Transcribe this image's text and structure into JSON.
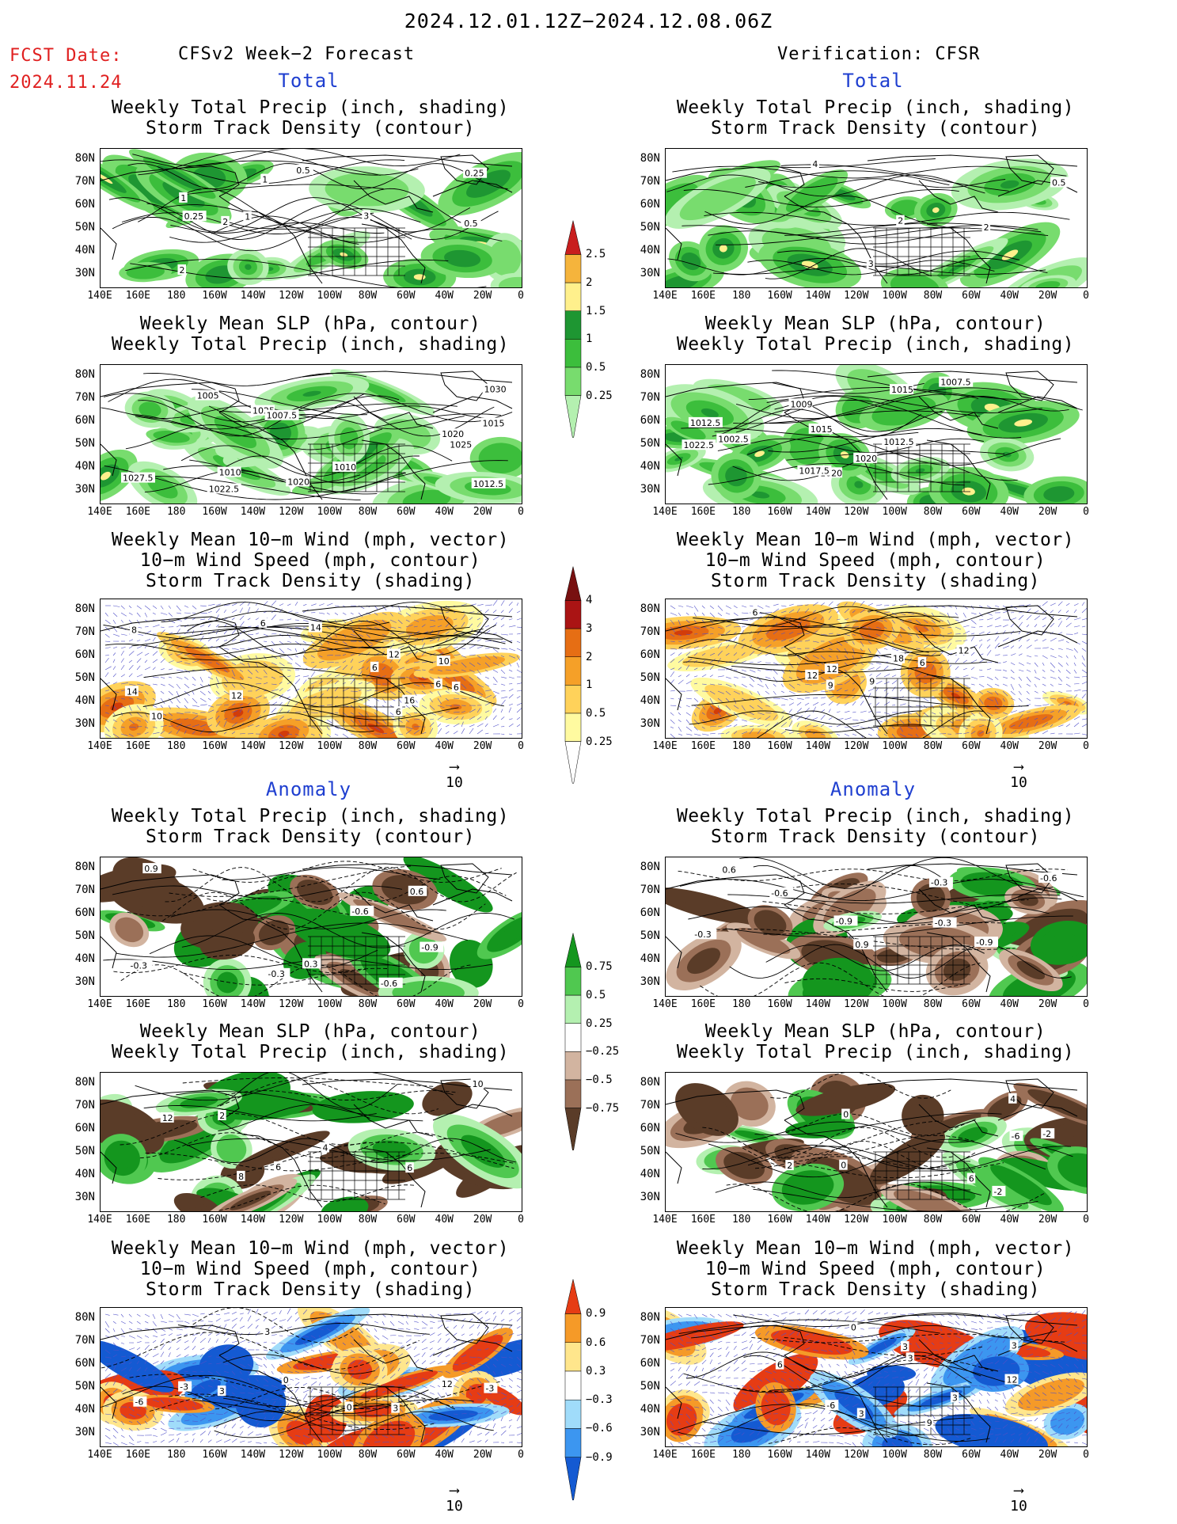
{
  "header": {
    "date_range": "2024.12.01.12Z−2024.12.08.06Z",
    "fcst_date_label": "FCST Date:",
    "fcst_date_value": "2024.11.24",
    "left_title": "CFSv2 Week−2 Forecast",
    "right_title": "Verification: CFSR"
  },
  "sections": {
    "total": "Total",
    "anomaly": "Anomaly"
  },
  "panel_titles": {
    "precip_storm": [
      "Weekly Total Precip (inch, shading)",
      "Storm Track Density (contour)"
    ],
    "slp_precip": [
      "Weekly Mean SLP (hPa, contour)",
      "Weekly Total Precip (inch, shading)"
    ],
    "wind_storm": [
      "Weekly Mean 10−m Wind (mph, vector)",
      "10−m Wind Speed (mph, contour)",
      "Storm Track Density (shading)"
    ]
  },
  "axes": {
    "y_ticks": [
      "80N",
      "70N",
      "60N",
      "50N",
      "40N",
      "30N"
    ],
    "x_ticks": [
      "140E",
      "160E",
      "180",
      "160W",
      "140W",
      "120W",
      "100W",
      "80W",
      "60W",
      "40W",
      "20W",
      "0"
    ]
  },
  "vector_ref": "10",
  "colorbars": {
    "total_precip": [
      "0.25",
      "0.5",
      "1",
      "1.5",
      "2",
      "2.5"
    ],
    "total_storm": [
      "0.25",
      "0.5",
      "1",
      "2",
      "3",
      "4"
    ],
    "anom_precip": [
      "−0.75",
      "−0.5",
      "−0.25",
      "0.25",
      "0.5",
      "0.75"
    ],
    "anom_storm": [
      "−0.9",
      "−0.6",
      "−0.3",
      "0.3",
      "0.6",
      "0.9"
    ]
  },
  "contour_labels": {
    "fc_total_precip": [
      "1",
      "2",
      "3",
      "1",
      "0.5",
      "0.25",
      "0.25",
      "0.5",
      "2",
      "1"
    ],
    "ob_total_precip": [
      "4",
      "2",
      "0.5",
      "3",
      "2"
    ],
    "fc_total_slp": [
      "1025",
      "1020",
      "1030",
      "1027.5",
      "1025",
      "1015",
      "1012.5",
      "1010",
      "1007.5",
      "1005",
      "1010",
      "1022.5",
      "1020"
    ],
    "ob_total_slp": [
      "1020",
      "1002.5",
      "1017.5",
      "1015",
      "1012.5",
      "1007.5",
      "1015",
      "1020",
      "1022.5",
      "1009",
      "1012.5"
    ],
    "fc_total_wind": [
      "6",
      "6",
      "12",
      "10",
      "6",
      "14",
      "12",
      "6",
      "14",
      "8",
      "6",
      "16",
      "10"
    ],
    "ob_total_wind": [
      "9",
      "12",
      "6",
      "6",
      "9",
      "12",
      "12",
      "18"
    ],
    "fc_anom_precip": [
      "-0.3",
      "-0.3",
      "-0.6",
      "-0.6",
      "-0.9",
      "0.9",
      "0.3",
      "0.6"
    ],
    "ob_anom_precip": [
      "-0.9",
      "-0.3",
      "-0.6",
      "-0.3",
      "0.9",
      "-0.9",
      "0.6",
      "-0.3",
      "-0.6"
    ],
    "fc_anom_slp": [
      "6",
      "8",
      "10",
      "4",
      "6",
      "12",
      "2"
    ],
    "ob_anom_slp": [
      "0",
      "-2",
      "2",
      "4",
      "0",
      "-2",
      "-6",
      "6"
    ],
    "fc_anom_wind": [
      "0",
      "0",
      "3",
      "3",
      "3",
      "-3",
      "-6",
      "-3",
      "12"
    ],
    "ob_anom_wind": [
      "0",
      "6",
      "3",
      "3",
      "-6",
      "3",
      "9",
      "12",
      "3",
      "3"
    ]
  },
  "colors": {
    "precip_levels": [
      "#b4f0b0",
      "#78dc6e",
      "#3cbe3c",
      "#1e9632",
      "#fff08c",
      "#f5b43c",
      "#e65028",
      "#c81e1e"
    ],
    "storm_levels": [
      "#fffaa0",
      "#ffd25a",
      "#f5a028",
      "#e66e14",
      "#d23c0a",
      "#aa1414",
      "#781010"
    ],
    "anom_precip": [
      "#5a3c28",
      "#9b7058",
      "#d2b4a0",
      "#b4f0b0",
      "#50c850",
      "#14961e"
    ],
    "anom_storm": [
      "#145ad2",
      "#3c96f0",
      "#a0dcfa",
      "#ffe68c",
      "#f59a28",
      "#e63c14"
    ],
    "section_label": "#1f3fd0",
    "fcst_label": "#e02020"
  }
}
